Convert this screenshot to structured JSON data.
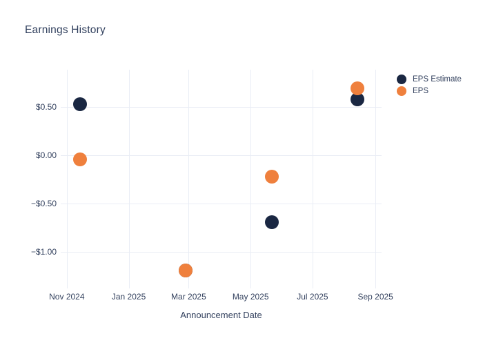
{
  "title": "Earnings History",
  "colors": {
    "background": "#ffffff",
    "grid": "#e9edf5",
    "text": "#33415e",
    "title_text": "#2f3e5c",
    "eps_estimate": "#1a2742",
    "eps_actual": "#ef803d"
  },
  "chart_data": {
    "type": "scatter",
    "title": "Earnings History",
    "xlabel": "Announcement Date",
    "ylabel": "",
    "grid": true,
    "legend_position": "top-right",
    "x_ticks": [
      {
        "label": "Nov 2024",
        "date": "2024-11-01"
      },
      {
        "label": "Jan 2025",
        "date": "2025-01-01"
      },
      {
        "label": "Mar 2025",
        "date": "2025-03-01"
      },
      {
        "label": "May 2025",
        "date": "2025-05-01"
      },
      {
        "label": "Jul 2025",
        "date": "2025-07-01"
      },
      {
        "label": "Sep 2025",
        "date": "2025-09-01"
      }
    ],
    "y_ticks": [
      {
        "label": "$0.50",
        "value": 0.5
      },
      {
        "label": "$0.00",
        "value": 0.0
      },
      {
        "label": "−$0.50",
        "value": -0.5
      },
      {
        "label": "−$1.00",
        "value": -1.0
      }
    ],
    "x_range": [
      "2024-10-26",
      "2025-09-07"
    ],
    "y_range": [
      -1.379,
      0.886
    ],
    "x": [
      "2024-11-14",
      "2025-02-26",
      "2025-05-22",
      "2025-08-14"
    ],
    "series": [
      {
        "name": "EPS Estimate",
        "color": "#1a2742",
        "values": [
          0.53,
          -1.19,
          -0.69,
          0.58
        ]
      },
      {
        "name": "EPS",
        "color": "#ef803d",
        "values": [
          -0.04,
          -1.19,
          -0.22,
          0.69
        ]
      }
    ]
  }
}
